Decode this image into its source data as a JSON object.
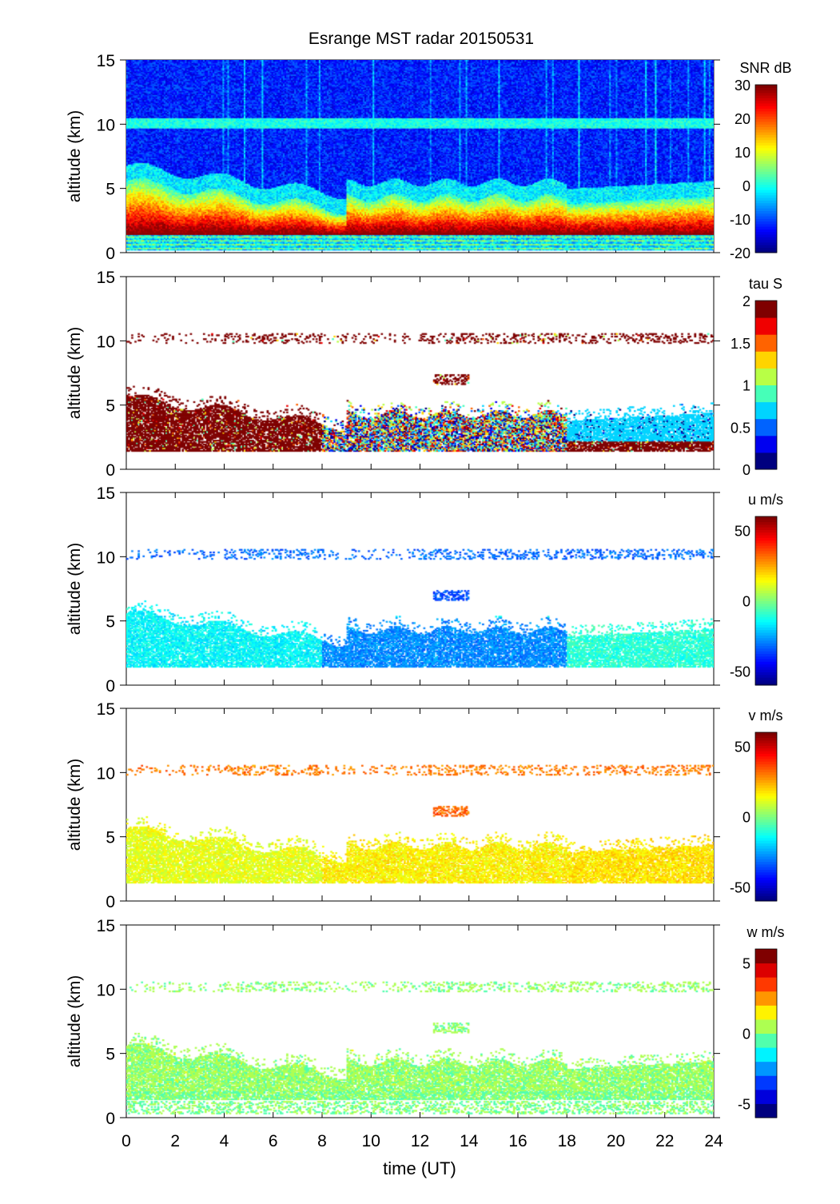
{
  "chart_data": {
    "type": "heatmap",
    "title": "Esrange MST radar 20150531",
    "xlabel": "time (UT)",
    "xlim": [
      0,
      24
    ],
    "xticks": [
      0,
      2,
      4,
      6,
      8,
      10,
      12,
      14,
      16,
      18,
      20,
      22,
      24
    ],
    "panels": [
      {
        "id": "snr",
        "ylabel": "altitude (km)",
        "ylim": [
          0,
          15
        ],
        "yticks": [
          0,
          5,
          10,
          15
        ],
        "colorbar_label": "SNR dB",
        "clim": [
          -20,
          30
        ],
        "cticks": [
          -20,
          -10,
          0,
          10,
          20,
          30
        ],
        "levels": 64,
        "background_value": -12,
        "features": [
          {
            "name": "boundary layer echo",
            "t": [
              0,
              24
            ],
            "z": [
              1.5,
              5.0
            ],
            "value": 24
          },
          {
            "name": "tropopause layer",
            "t": [
              0,
              24
            ],
            "z": [
              9.8,
              10.4
            ],
            "value": -3
          },
          {
            "name": "low-altitude clutter",
            "t": [
              0,
              24
            ],
            "z": [
              0.3,
              1.5
            ],
            "value": -5
          }
        ]
      },
      {
        "id": "tau",
        "ylabel": "altitude (km)",
        "ylim": [
          0,
          15
        ],
        "yticks": [
          0,
          5,
          10,
          15
        ],
        "colorbar_label": "tau S",
        "clim": [
          0,
          2
        ],
        "cticks": [
          0,
          0.5,
          1,
          1.5,
          2
        ],
        "levels": 10,
        "features": [
          {
            "t": [
              0,
              8
            ],
            "z": [
              1.5,
              5.5
            ],
            "value": 2
          },
          {
            "t": [
              8,
              18
            ],
            "z": [
              1.5,
              4.5
            ],
            "value": 1.0
          },
          {
            "t": [
              18,
              24
            ],
            "z": [
              1.5,
              3.0
            ],
            "value": 2
          },
          {
            "t": [
              18,
              24
            ],
            "z": [
              3.0,
              4.5
            ],
            "value": 0.7
          },
          {
            "t": [
              0,
              24
            ],
            "z": [
              9.8,
              10.6
            ],
            "value": 2
          },
          {
            "t": [
              12.5,
              14
            ],
            "z": [
              6.6,
              7.4
            ],
            "value": 2
          }
        ]
      },
      {
        "id": "u",
        "ylabel": "altitude (km)",
        "ylim": [
          0,
          15
        ],
        "yticks": [
          0,
          5,
          10,
          15
        ],
        "colorbar_label": "u m/s",
        "clim": [
          -60,
          60
        ],
        "cticks": [
          -50,
          0,
          50
        ],
        "levels": 64,
        "features": [
          {
            "t": [
              0,
              8
            ],
            "z": [
              1.5,
              5.5
            ],
            "value": -15
          },
          {
            "t": [
              8,
              18
            ],
            "z": [
              1.5,
              4.5
            ],
            "value": -28
          },
          {
            "t": [
              18,
              24
            ],
            "z": [
              1.5,
              4.5
            ],
            "value": -10
          },
          {
            "t": [
              0,
              24
            ],
            "z": [
              9.8,
              10.6
            ],
            "value": -32
          },
          {
            "t": [
              12.5,
              14
            ],
            "z": [
              6.6,
              7.4
            ],
            "value": -35
          }
        ]
      },
      {
        "id": "v",
        "ylabel": "altitude (km)",
        "ylim": [
          0,
          15
        ],
        "yticks": [
          0,
          5,
          10,
          15
        ],
        "colorbar_label": "v m/s",
        "clim": [
          -60,
          60
        ],
        "cticks": [
          -50,
          0,
          50
        ],
        "levels": 64,
        "features": [
          {
            "t": [
              0,
              8
            ],
            "z": [
              1.5,
              5.5
            ],
            "value": 12
          },
          {
            "t": [
              8,
              18
            ],
            "z": [
              1.5,
              4.5
            ],
            "value": 16
          },
          {
            "t": [
              18,
              24
            ],
            "z": [
              1.5,
              4.5
            ],
            "value": 18
          },
          {
            "t": [
              0,
              24
            ],
            "z": [
              9.8,
              10.6
            ],
            "value": 30
          },
          {
            "t": [
              12.5,
              14
            ],
            "z": [
              6.6,
              7.4
            ],
            "value": 32
          }
        ]
      },
      {
        "id": "w",
        "ylabel": "altitude (km)",
        "ylim": [
          0,
          15
        ],
        "yticks": [
          0,
          5,
          10,
          15
        ],
        "colorbar_label": "w m/s",
        "clim": [
          -6,
          6
        ],
        "cticks": [
          -5,
          0,
          5
        ],
        "levels": 12,
        "features": [
          {
            "t": [
              0,
              24
            ],
            "z": [
              1.3,
              5.3
            ],
            "value": 0.3
          },
          {
            "t": [
              0,
              24
            ],
            "z": [
              0.3,
              1.3
            ],
            "value": 0.0
          },
          {
            "t": [
              0,
              24
            ],
            "z": [
              9.8,
              10.6
            ],
            "value": 0.2
          },
          {
            "t": [
              12.5,
              14
            ],
            "z": [
              6.6,
              7.4
            ],
            "value": 0.3
          }
        ]
      }
    ]
  }
}
